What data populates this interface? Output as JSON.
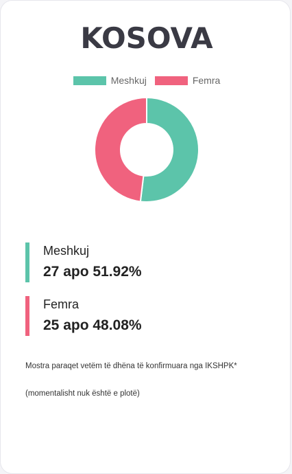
{
  "title": "KOSOVA",
  "chart_data": {
    "type": "pie",
    "variant": "doughnut",
    "legend_position": "top",
    "categories": [
      "Meshkuj",
      "Femra"
    ],
    "values": [
      27,
      25
    ],
    "colors": [
      "#5cc4aa",
      "#f0627e"
    ]
  },
  "stats": [
    {
      "label": "Meshkuj",
      "value": "27 apo 51.92%",
      "color": "#5cc4aa"
    },
    {
      "label": "Femra",
      "value": "25 apo 48.08%",
      "color": "#f0627e"
    }
  ],
  "notes": [
    "Mostra paraqet vetëm të dhëna të konfirmuara nga IKSHPK*",
    "(momentalisht nuk është e plotë)"
  ]
}
